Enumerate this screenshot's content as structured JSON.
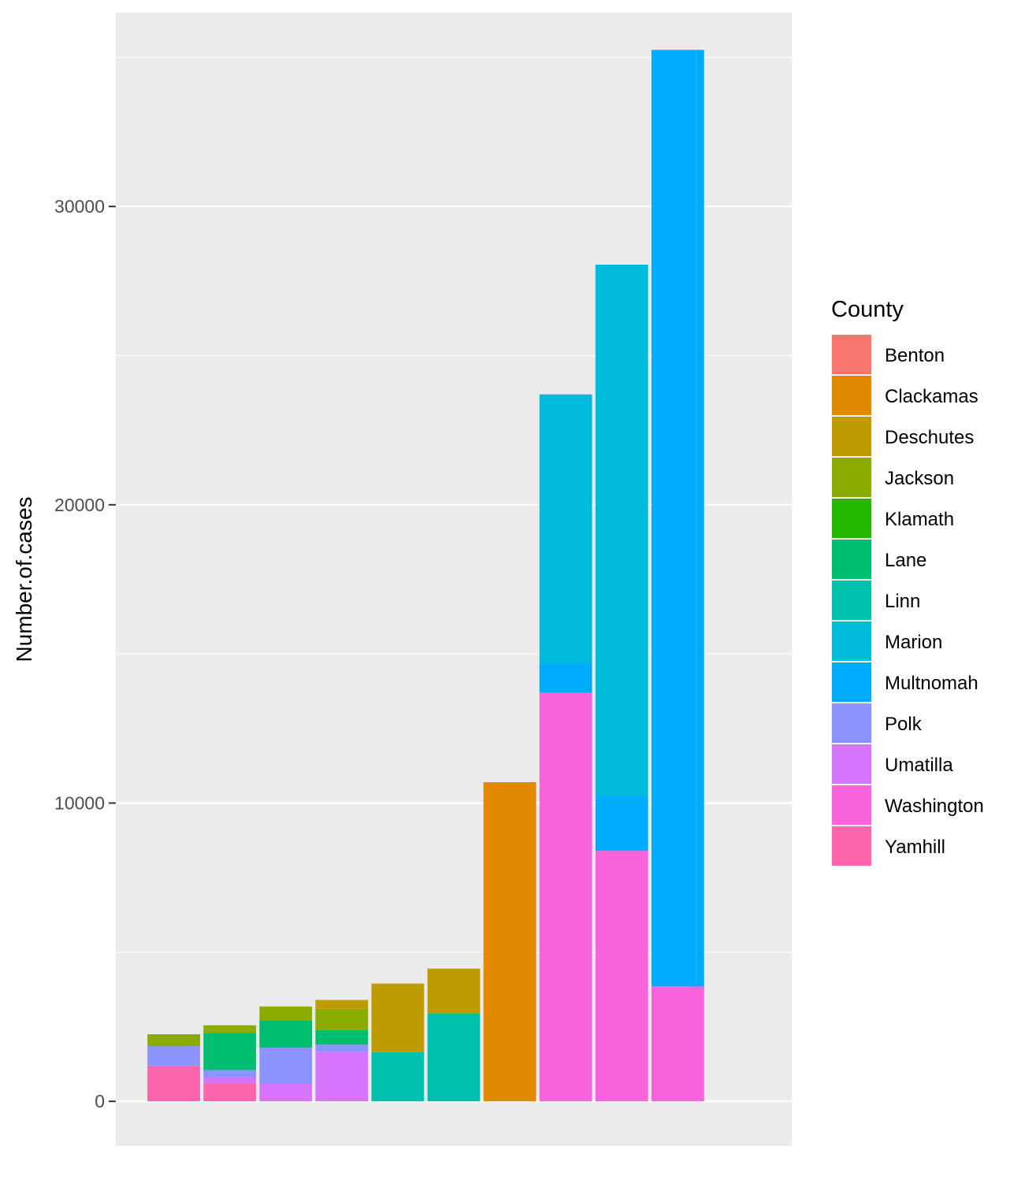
{
  "chart_data": {
    "type": "bar",
    "stacked": true,
    "title": "",
    "xlabel": "",
    "ylabel": "Number.of.cases",
    "ylim": [
      -1500,
      36500
    ],
    "yticks": [
      0,
      10000,
      20000,
      30000
    ],
    "ytick_labels": [
      "0",
      "10000",
      "20000",
      "30000"
    ],
    "grid": true,
    "legend": {
      "title": "County",
      "position": "right"
    },
    "categories": [
      "",
      "",
      "",
      "",
      "",
      "",
      "",
      "",
      "",
      "",
      ""
    ],
    "series": [
      {
        "name": "Benton",
        "color": "#F8766D",
        "values": [
          0,
          0,
          0,
          0,
          0,
          0,
          0,
          0,
          0,
          0,
          0
        ]
      },
      {
        "name": "Clackamas",
        "color": "#E18A00",
        "values": [
          0,
          0,
          0,
          0,
          0,
          0,
          10700,
          0,
          0,
          0,
          0
        ]
      },
      {
        "name": "Deschutes",
        "color": "#BE9C00",
        "values": [
          0,
          0,
          0,
          300,
          2300,
          1500,
          0,
          0,
          0,
          0,
          0
        ]
      },
      {
        "name": "Jackson",
        "color": "#8CAB00",
        "values": [
          400,
          250,
          480,
          700,
          0,
          0,
          0,
          0,
          0,
          0,
          0
        ]
      },
      {
        "name": "Klamath",
        "color": "#24B700",
        "values": [
          0,
          0,
          0,
          0,
          0,
          0,
          0,
          0,
          0,
          0,
          0
        ]
      },
      {
        "name": "Lane",
        "color": "#00BE70",
        "values": [
          0,
          1250,
          900,
          500,
          0,
          0,
          0,
          0,
          0,
          0,
          0
        ]
      },
      {
        "name": "Linn",
        "color": "#00C1AB",
        "values": [
          0,
          0,
          0,
          0,
          1650,
          2950,
          0,
          0,
          0,
          0,
          0
        ]
      },
      {
        "name": "Marion",
        "color": "#00BBDA",
        "values": [
          0,
          0,
          0,
          0,
          0,
          0,
          0,
          9000,
          17800,
          0,
          0
        ]
      },
      {
        "name": "Multnomah",
        "color": "#00ACFC",
        "values": [
          0,
          0,
          0,
          0,
          0,
          0,
          0,
          1000,
          1850,
          31400,
          0
        ]
      },
      {
        "name": "Polk",
        "color": "#8B93FF",
        "values": [
          650,
          250,
          1200,
          250,
          0,
          0,
          0,
          0,
          0,
          0,
          0
        ]
      },
      {
        "name": "Umatilla",
        "color": "#D575FE",
        "values": [
          0,
          200,
          600,
          1650,
          0,
          0,
          0,
          0,
          0,
          0,
          0
        ]
      },
      {
        "name": "Washington",
        "color": "#F962DD",
        "values": [
          0,
          0,
          0,
          0,
          0,
          0,
          0,
          13700,
          8400,
          3850,
          0
        ]
      },
      {
        "name": "Yamhill",
        "color": "#FF65AC",
        "values": [
          1200,
          600,
          0,
          0,
          0,
          0,
          0,
          0,
          0,
          0,
          0
        ]
      }
    ]
  }
}
